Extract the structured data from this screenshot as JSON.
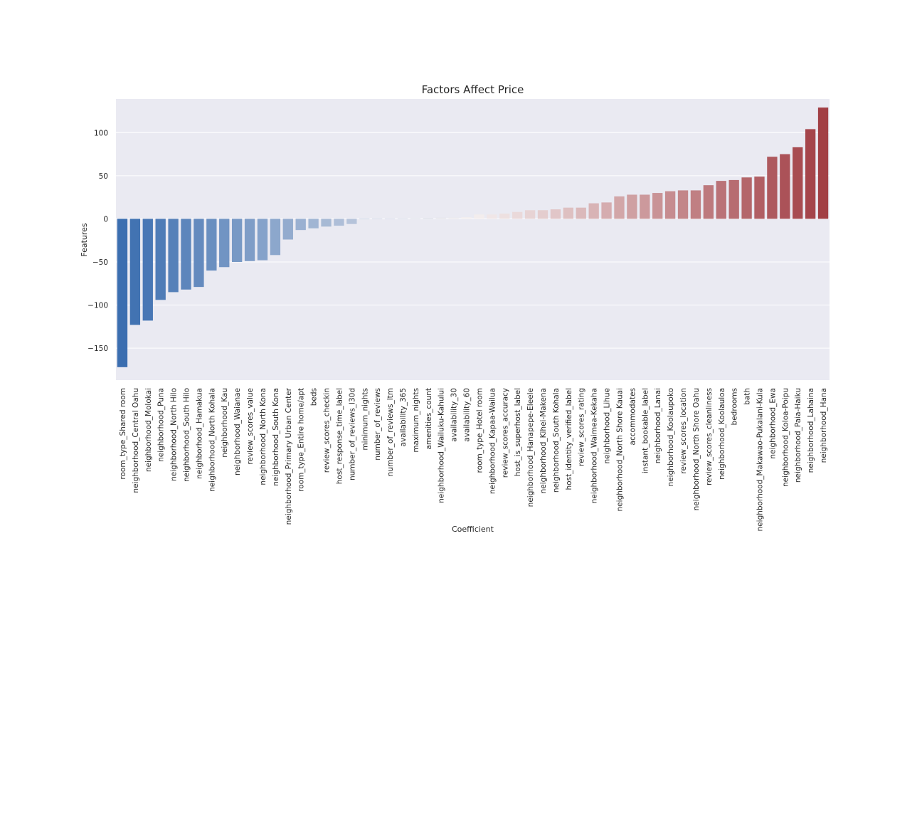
{
  "chart_data": {
    "type": "bar",
    "title": "Factors Affect Price",
    "xlabel": "Coefficient",
    "ylabel": "Features",
    "ylim": [
      -187,
      139
    ],
    "yticks": [
      100,
      50,
      0,
      -50,
      -100,
      -150
    ],
    "grid": true,
    "legend": "none",
    "palette": {
      "negative_end": "#3b6eb0",
      "neutral": "#f5f0f0",
      "positive_end": "#a23f45",
      "plot_bg": "#eaeaf2",
      "grid": "#ffffff"
    },
    "categories": [
      "room_type_Shared room",
      "neighborhood_Central Oahu",
      "neighborhood_Molokai",
      "neighborhood_Puna",
      "neighborhood_North Hilo",
      "neighborhood_South Hilo",
      "neighborhood_Hamakua",
      "neighborhood_North Kohala",
      "neighborhood_Kau",
      "neighborhood_Waianae",
      "review_scores_value",
      "neighborhood_North Kona",
      "neighborhood_South Kona",
      "neighborhood_Primary Urban Center",
      "room_type_Entire home/apt",
      "beds",
      "review_scores_checkin",
      "host_response_time_label",
      "number_of_reviews_l30d",
      "minimum_nights",
      "number_of_reviews",
      "number_of_reviews_ltm",
      "availability_365",
      "maximum_nights",
      "amenities_count",
      "neighborhood_Wailuku-Kahului",
      "availability_30",
      "availability_60",
      "room_type_Hotel room",
      "neighborhood_Kapaa-Wailua",
      "review_scores_accuracy",
      "host_is_superhost_label",
      "neighborhood_Hanapepe-Eleele",
      "neighborhood_Kihei-Makena",
      "neighborhood_South Kohala",
      "host_identity_verified_label",
      "review_scores_rating",
      "neighborhood_Waimea-Kekaha",
      "neighborhood_Lihue",
      "neighborhood_North Shore Kauai",
      "accommodates",
      "instant_bookable_label",
      "neighborhood_Lanai",
      "neighborhood_Koolaupoko",
      "review_scores_location",
      "neighborhood_North Shore Oahu",
      "review_scores_cleanliness",
      "neighborhood_Koolauloa",
      "bedrooms",
      "bath",
      "neighborhood_Makawao-Pukalani-Kula",
      "neighborhood_Ewa",
      "neighborhood_Koloa-Poipu",
      "neighborhood_Paia-Haiku",
      "neighborhood_Lahaina",
      "neighborhood_Hana"
    ],
    "values": [
      -172,
      -123,
      -118,
      -94,
      -85,
      -82,
      -79,
      -60,
      -56,
      -50,
      -49,
      -48,
      -42,
      -24,
      -13,
      -11,
      -9,
      -8,
      -6,
      -0.5,
      -0.3,
      -0.2,
      0.2,
      0.4,
      1.2,
      1.4,
      1.6,
      2,
      5,
      5,
      6,
      8,
      10,
      10,
      11,
      13,
      13,
      18,
      19,
      26,
      28,
      28,
      30,
      32,
      33,
      33,
      39,
      44,
      45,
      48,
      49,
      72,
      75,
      83,
      104,
      129
    ]
  }
}
